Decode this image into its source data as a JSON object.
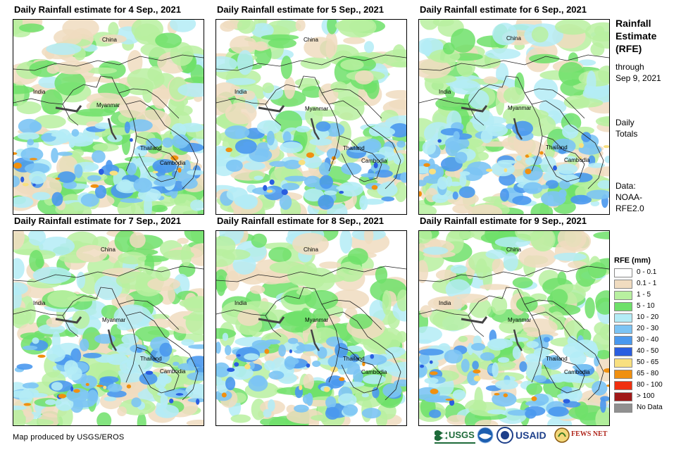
{
  "panels": [
    {
      "title": "Daily Rainfall estimate for 4 Sep., 2021",
      "labels": {
        "china": "China",
        "india": "India",
        "myanmar": "Myanmar",
        "thailand": "Thailand",
        "cambodia": "Cambodia"
      },
      "intensity": 0.55
    },
    {
      "title": "Daily Rainfall estimate for 5 Sep., 2021",
      "labels": {
        "china": "China",
        "india": "India",
        "myanmar": "Myanmar",
        "thailand": "Thailand",
        "cambodia": "Cambodia"
      },
      "intensity": 0.5
    },
    {
      "title": "Daily Rainfall estimate for 6 Sep., 2021",
      "labels": {
        "china": "China",
        "india": "India",
        "myanmar": "Myanmar",
        "thailand": "Thailand",
        "cambodia": "Cambodia"
      },
      "intensity": 0.45
    },
    {
      "title": "Daily Rainfall estimate for 7 Sep., 2021",
      "labels": {
        "china": "China",
        "india": "India",
        "myanmar": "Myanmar",
        "thailand": "Thailand",
        "cambodia": "Cambodia"
      },
      "intensity": 0.5
    },
    {
      "title": "Daily Rainfall estimate for 8 Sep., 2021",
      "labels": {
        "china": "China",
        "india": "India",
        "myanmar": "Myanmar",
        "thailand": "Thailand",
        "cambodia": "Cambodia"
      },
      "intensity": 0.45
    },
    {
      "title": "Daily Rainfall estimate for 9 Sep., 2021",
      "labels": {
        "china": "China",
        "india": "India",
        "myanmar": "Myanmar",
        "thailand": "Thailand",
        "cambodia": "Cambodia"
      },
      "intensity": 0.4
    }
  ],
  "side": {
    "title_line1": "Rainfall",
    "title_line2": "Estimate",
    "title_line3": "(RFE)",
    "through_line1": "through",
    "through_line2": "Sep 9, 2021",
    "daily_line1": "Daily",
    "daily_line2": "Totals",
    "data_line1": "Data:",
    "data_line2": "NOAA-",
    "data_line3": "RFE2.0"
  },
  "legend": {
    "title": "RFE (mm)",
    "items": [
      {
        "label": "0 - 0.1",
        "color": "#ffffff"
      },
      {
        "label": "0.1 - 1",
        "color": "#f0dcc0"
      },
      {
        "label": "1 - 5",
        "color": "#b8f0a0"
      },
      {
        "label": "5 - 10",
        "color": "#6ee06a"
      },
      {
        "label": "10 - 20",
        "color": "#b4ecf6"
      },
      {
        "label": "20 - 30",
        "color": "#7cc4f4"
      },
      {
        "label": "30 - 40",
        "color": "#4a98ee"
      },
      {
        "label": "40 - 50",
        "color": "#2a5ee0"
      },
      {
        "label": "50 - 65",
        "color": "#f8e080"
      },
      {
        "label": "65 - 80",
        "color": "#f09010"
      },
      {
        "label": "80 - 100",
        "color": "#f03010"
      },
      {
        "label": "> 100",
        "color": "#a01818"
      },
      {
        "label": "No Data",
        "color": "#909090"
      }
    ]
  },
  "credit": "Map produced by USGS/EROS",
  "logos": {
    "usgs": "USGS",
    "usaid": "USAID",
    "fewsnet": "FEWS NET"
  }
}
